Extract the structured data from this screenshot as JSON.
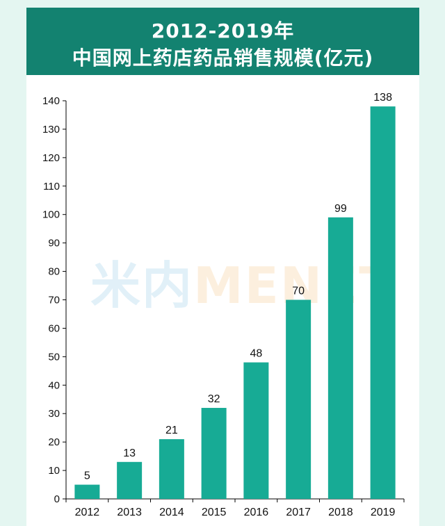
{
  "title": {
    "line1": "2012-2019年",
    "line2": "中国网上药店药品销售规模(亿元)"
  },
  "watermark": {
    "cn": "米内",
    "en": "MENET"
  },
  "colors": {
    "header": "#138270",
    "bar": "#17ab95",
    "background": "#e4f6f1"
  },
  "chart_data": {
    "type": "bar",
    "categories": [
      "2012",
      "2013",
      "2014",
      "2015",
      "2016",
      "2017",
      "2018",
      "2019"
    ],
    "values": [
      5,
      13,
      21,
      32,
      48,
      70,
      99,
      138
    ],
    "title": "2012-2019年 中国网上药店药品销售规模(亿元)",
    "xlabel": "",
    "ylabel": "",
    "ylim": [
      0,
      140
    ],
    "yticks": [
      0,
      10,
      20,
      30,
      40,
      50,
      60,
      70,
      80,
      90,
      100,
      110,
      120,
      130,
      140
    ],
    "data_labels": true,
    "grid": false,
    "legend": "none"
  }
}
